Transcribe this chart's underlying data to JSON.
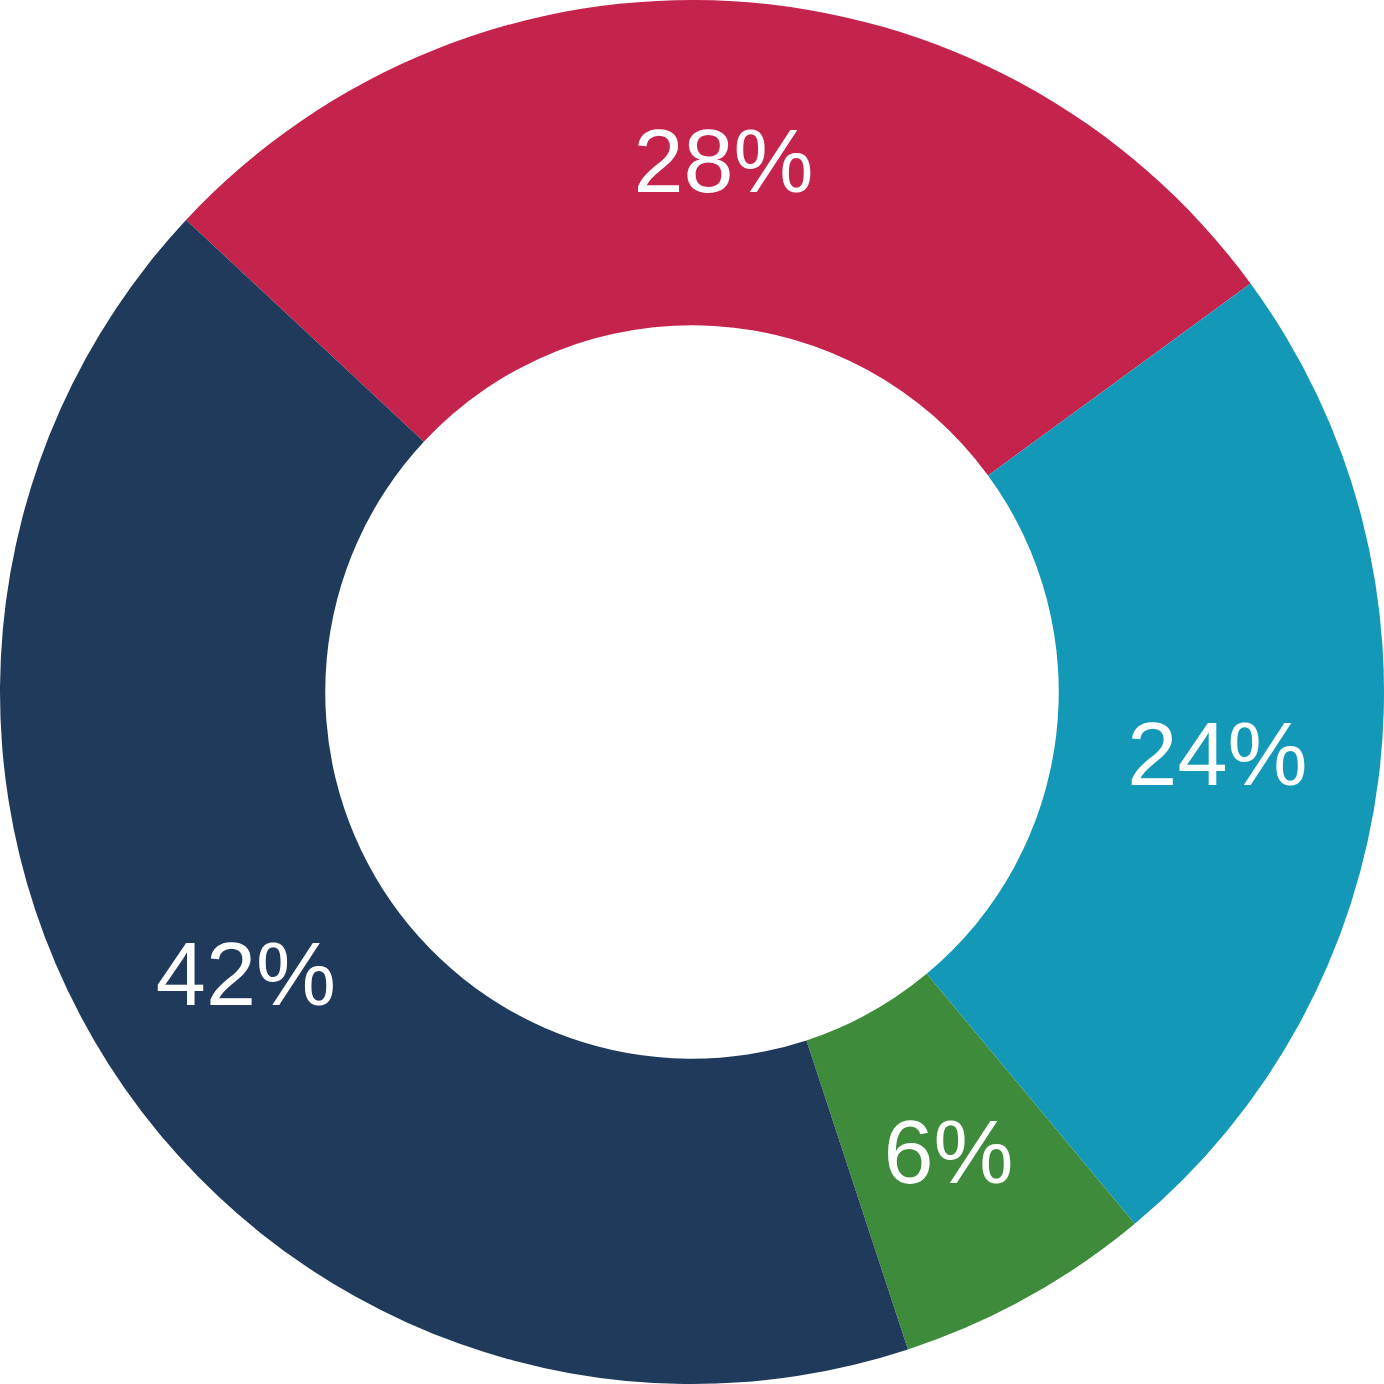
{
  "chart_data": {
    "type": "donut",
    "categories": [
      null,
      null,
      null,
      null
    ],
    "values": [
      28,
      24,
      6,
      42
    ],
    "colors": [
      "#c4234c",
      "#1498b8",
      "#3e8b3b",
      "#1f3a5a"
    ],
    "value_labels": [
      "28%",
      "24%",
      "6%",
      "42%"
    ]
  }
}
